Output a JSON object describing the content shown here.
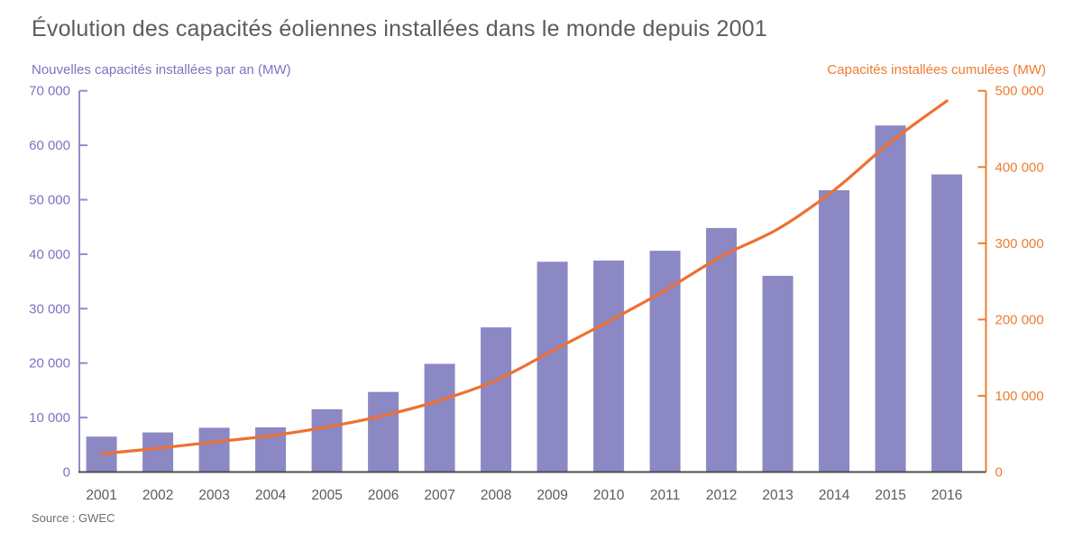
{
  "title": "Évolution des capacités éoliennes installées dans le monde depuis 2001",
  "source": "Source : GWEC",
  "axes": {
    "left_label": "Nouvelles capacités installées par an (MW)",
    "right_label": "Capacités installées cumulées (MW)"
  },
  "chart_data": {
    "type": "bar",
    "subtype": "bar+line combo, dual y-axes",
    "title": "Évolution des capacités éoliennes installées dans le monde depuis 2001",
    "source": "Source : GWEC",
    "grid": false,
    "legend_position": "axis-titles-top",
    "categories": [
      "2001",
      "2002",
      "2003",
      "2004",
      "2005",
      "2006",
      "2007",
      "2008",
      "2009",
      "2010",
      "2011",
      "2012",
      "2013",
      "2014",
      "2015",
      "2016"
    ],
    "series": [
      {
        "name": "Nouvelles capacités installées par an (MW)",
        "type": "bar",
        "axis": "left",
        "color": "#8c88c4",
        "values": [
          6500,
          7270,
          8133,
          8207,
          11531,
          14703,
          19866,
          26560,
          38610,
          38828,
          40628,
          44799,
          36023,
          51747,
          63633,
          54642
        ]
      },
      {
        "name": "Capacités installées cumulées (MW)",
        "type": "line",
        "axis": "right",
        "color": "#ed7032",
        "smooth": true,
        "values": [
          23900,
          31100,
          39431,
          47620,
          59091,
          74052,
          93820,
          120291,
          158864,
          197637,
          238110,
          282842,
          318697,
          369695,
          432680,
          486749
        ]
      }
    ],
    "left_axis": {
      "label": "Nouvelles capacités installées par an (MW)",
      "min": 0,
      "max": 70000,
      "tick_values": [
        0,
        10000,
        20000,
        30000,
        40000,
        50000,
        60000,
        70000
      ],
      "tick_labels": [
        "0",
        "10 000",
        "20 000",
        "30 000",
        "40 000",
        "50 000",
        "60 000",
        "70 000"
      ],
      "label_color": "#7b74c0",
      "line_color": "#928cca"
    },
    "right_axis": {
      "label": "Capacités installées cumulées (MW)",
      "min": 0,
      "max": 500000,
      "tick_values": [
        0,
        100000,
        200000,
        300000,
        400000,
        500000
      ],
      "tick_labels": [
        "0",
        "100 000",
        "200 000",
        "300 000",
        "400 000",
        "500 000"
      ],
      "label_color": "#ed7d31",
      "line_color": "#ed7d31"
    },
    "x_axis": {
      "line_color": "#4d4d4f",
      "label_color": "#5b5b5e"
    }
  }
}
